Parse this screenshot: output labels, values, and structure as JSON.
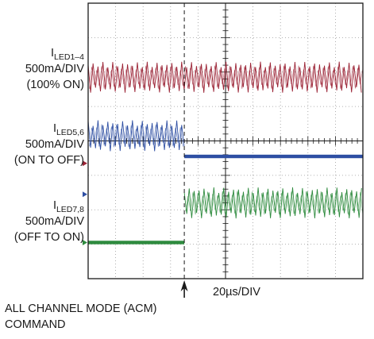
{
  "chart_data": {
    "type": "line",
    "title": "",
    "time_scale": "20µs/DIV",
    "grid": true,
    "divisions": {
      "x": 10,
      "y": 8
    },
    "annotation": {
      "line1": "ALL CHANNEL MODE (ACM)",
      "line2": "COMMAND",
      "event_division": 3.5
    },
    "series": [
      {
        "name_main": "I",
        "name_sub": "LED1–4",
        "scale": "500mA/DIV",
        "state": "(100% ON)",
        "color": "#9b2335",
        "ground_div": 4.65,
        "segments": [
          {
            "from_div": 0,
            "to_div": 10,
            "mode": "ripple",
            "center_div": 2.15,
            "amplitude_div": 0.45
          }
        ]
      },
      {
        "name_main": "I",
        "name_sub": "LED5,6",
        "scale": "500mA/DIV",
        "state": "(ON TO OFF)",
        "color": "#2e4fa3",
        "ground_div": 5.55,
        "segments": [
          {
            "from_div": 0,
            "to_div": 3.5,
            "mode": "ripple",
            "center_div": 3.85,
            "amplitude_div": 0.45
          },
          {
            "from_div": 3.5,
            "to_div": 10,
            "mode": "flat",
            "level_div": 4.45
          }
        ]
      },
      {
        "name_main": "I",
        "name_sub": "LED7,8",
        "scale": "500mA/DIV",
        "state": "(OFF TO ON)",
        "color": "#2e8b3e",
        "ground_div": 6.95,
        "segments": [
          {
            "from_div": 0,
            "to_div": 3.5,
            "mode": "flat",
            "level_div": 6.95
          },
          {
            "from_div": 3.5,
            "to_div": 10,
            "mode": "ripple",
            "center_div": 5.8,
            "amplitude_div": 0.45
          }
        ]
      }
    ]
  }
}
